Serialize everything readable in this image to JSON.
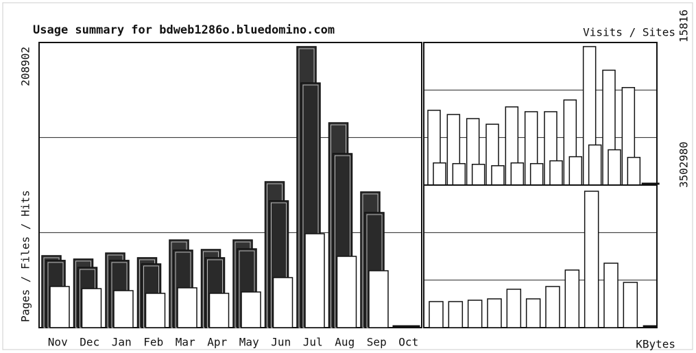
{
  "chart_data": [
    {
      "type": "bar",
      "title": "Usage summary for bdweb1286o.bluedomino.com",
      "y_label": "Pages / Files / Hits",
      "categories": [
        "Nov",
        "Dec",
        "Jan",
        "Feb",
        "Mar",
        "Apr",
        "May",
        "Jun",
        "Jul",
        "Aug",
        "Sep",
        "Oct"
      ],
      "ylim": [
        0,
        208902
      ],
      "yticks": [
        208902
      ],
      "series": [
        {
          "name": "Hits",
          "color": "#333333",
          "values": [
            53500,
            51000,
            55500,
            52000,
            65200,
            58100,
            65200,
            108500,
            208902,
            152300,
            100900,
            0
          ]
        },
        {
          "name": "Files",
          "color": "#2a2a2a",
          "values": [
            50000,
            44800,
            50000,
            47400,
            57600,
            52000,
            58600,
            94300,
            181900,
            129400,
            85600,
            0
          ]
        },
        {
          "name": "Pages",
          "color": "#ffffff",
          "values": [
            30600,
            29000,
            27500,
            25500,
            29600,
            25500,
            26500,
            37200,
            69800,
            53000,
            42300,
            0
          ]
        }
      ]
    },
    {
      "type": "bar",
      "y_label": "Visits / Sites",
      "ylim": [
        0,
        15816
      ],
      "yticks": [
        15816
      ],
      "series": [
        {
          "name": "Visits",
          "color": "#ffffff",
          "values": [
            8540,
            8060,
            7590,
            6950,
            8930,
            8380,
            8380,
            9720,
            15816,
            13120,
            11140,
            0
          ]
        },
        {
          "name": "Sites",
          "color": "#ffffff",
          "values": [
            2530,
            2450,
            2370,
            2210,
            2530,
            2450,
            2770,
            3240,
            4580,
            4030,
            3160,
            0
          ]
        }
      ]
    },
    {
      "type": "bar",
      "y_label": "KBytes",
      "ylim": [
        0,
        3502980
      ],
      "yticks": [
        3502980
      ],
      "series": [
        {
          "name": "KBytes",
          "color": "#ffffff",
          "values": [
            669000,
            669000,
            704000,
            739000,
            986000,
            739000,
            1056000,
            1479000,
            3502980,
            1655000,
            1162000,
            0
          ]
        }
      ]
    }
  ]
}
